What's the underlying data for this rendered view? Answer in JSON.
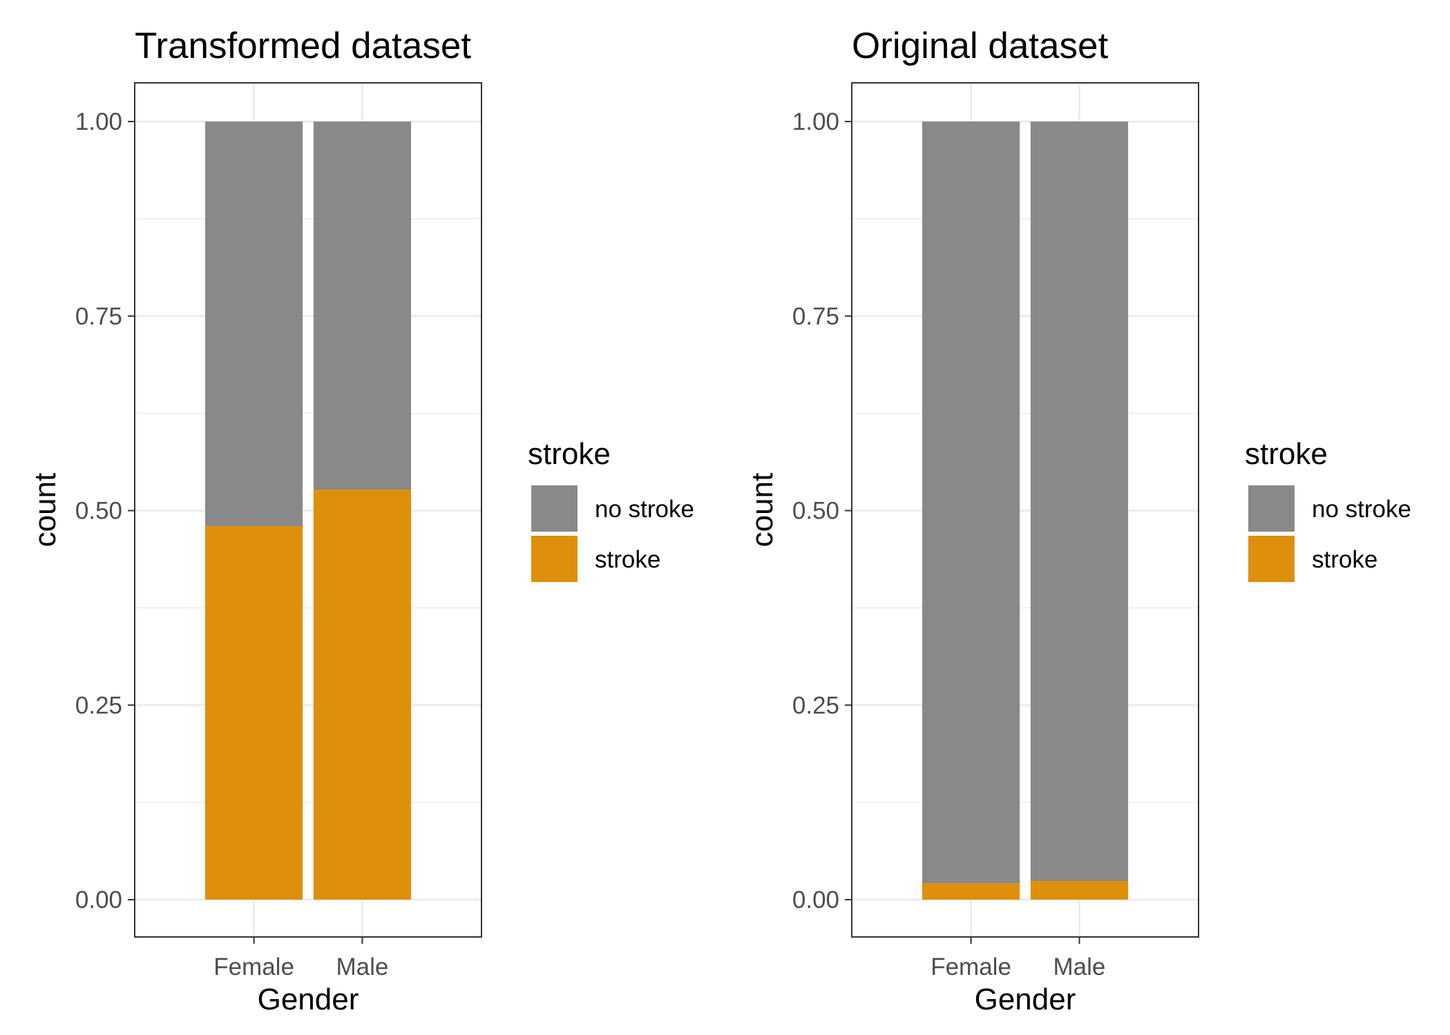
{
  "colors": {
    "no stroke": "#898989",
    "stroke": "#DE8F0B",
    "grid": "#ebebeb",
    "panel_border": "#333333"
  },
  "chart_data": [
    {
      "type": "bar",
      "stacking": "fill",
      "title": "Transformed dataset",
      "xlabel": "Gender",
      "ylabel": "count",
      "categories": [
        "Female",
        "Male"
      ],
      "series": [
        {
          "name": "no stroke",
          "values": [
            0.52,
            0.473
          ]
        },
        {
          "name": "stroke",
          "values": [
            0.48,
            0.527
          ]
        }
      ],
      "ylim": [
        0,
        1
      ],
      "yticks": [
        "0.00",
        "0.25",
        "0.50",
        "0.75",
        "1.00"
      ],
      "grid": true,
      "legend": {
        "title": "stroke",
        "position": "right",
        "items": [
          "no stroke",
          "stroke"
        ]
      }
    },
    {
      "type": "bar",
      "stacking": "fill",
      "title": "Original dataset",
      "xlabel": "Gender",
      "ylabel": "count",
      "categories": [
        "Female",
        "Male"
      ],
      "series": [
        {
          "name": "no stroke",
          "values": [
            0.979,
            0.976
          ]
        },
        {
          "name": "stroke",
          "values": [
            0.021,
            0.024
          ]
        }
      ],
      "ylim": [
        0,
        1
      ],
      "yticks": [
        "0.00",
        "0.25",
        "0.50",
        "0.75",
        "1.00"
      ],
      "grid": true,
      "legend": {
        "title": "stroke",
        "position": "right",
        "items": [
          "no stroke",
          "stroke"
        ]
      }
    }
  ]
}
